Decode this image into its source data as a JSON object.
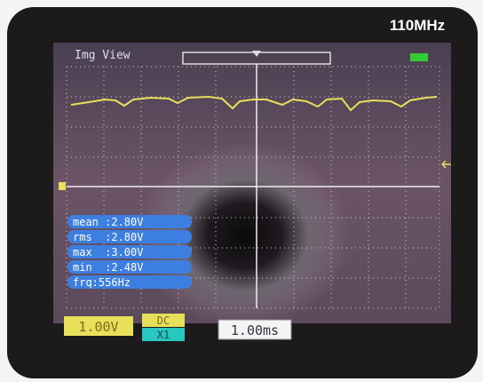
{
  "brand": {
    "bandwidth": "110MHz"
  },
  "screen": {
    "mode": "Img View",
    "measurements": [
      "mean :2.80V",
      "rms  :2.80V",
      "max  :3.00V",
      "min  :2.48V",
      "frq:556Hz"
    ],
    "volts_per_div": "1.00V",
    "coupling": "DC",
    "probe": "X1",
    "time_per_div": "1.00ms"
  }
}
